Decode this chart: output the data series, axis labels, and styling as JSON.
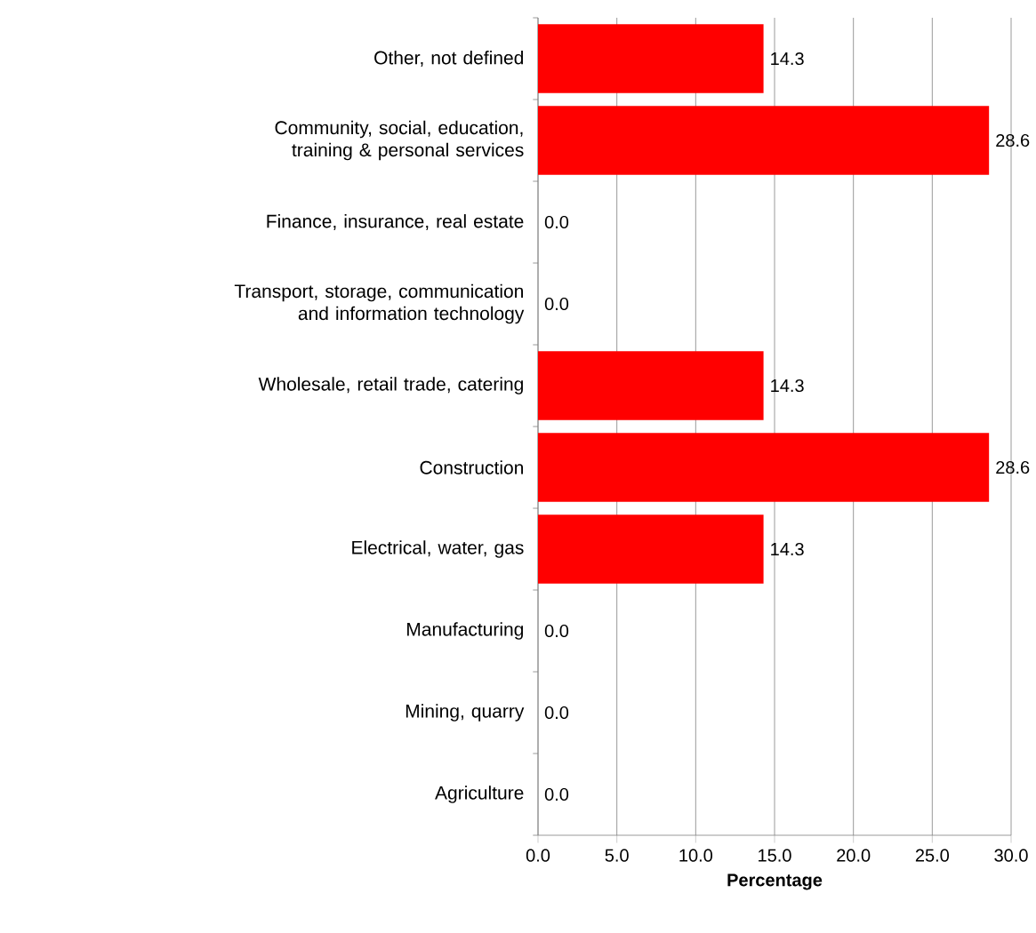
{
  "chart_data": {
    "type": "bar",
    "orientation": "horizontal",
    "xlabel": "Percentage",
    "categories": [
      "Other, not defined",
      "Community, social, education, training & personal services",
      "Finance, insurance, real estate",
      "Transport, storage, communication and information technology",
      "Wholesale, retail trade, catering",
      "Construction",
      "Electrical, water, gas",
      "Manufacturing",
      "Mining, quarry",
      "Agriculture"
    ],
    "values": [
      14.3,
      28.6,
      0,
      0,
      14.3,
      28.6,
      14.3,
      0,
      0,
      0
    ],
    "value_labels": [
      "14.3",
      "28.6",
      "0.0",
      "0.0",
      "14.3",
      "28.6",
      "14.3",
      "0.0",
      "0.0",
      "0.0"
    ],
    "color": "#ff0000",
    "xlim": [
      0,
      30
    ],
    "xticks": [
      {
        "value": 0,
        "label": "0.0"
      },
      {
        "value": 5,
        "label": "5.0"
      },
      {
        "value": 10,
        "label": "10.0"
      },
      {
        "value": 15,
        "label": "15.0"
      },
      {
        "value": 20,
        "label": "20.0"
      },
      {
        "value": 25,
        "label": "25.0"
      },
      {
        "value": 30,
        "label": "30.0"
      }
    ],
    "grid": "x"
  }
}
